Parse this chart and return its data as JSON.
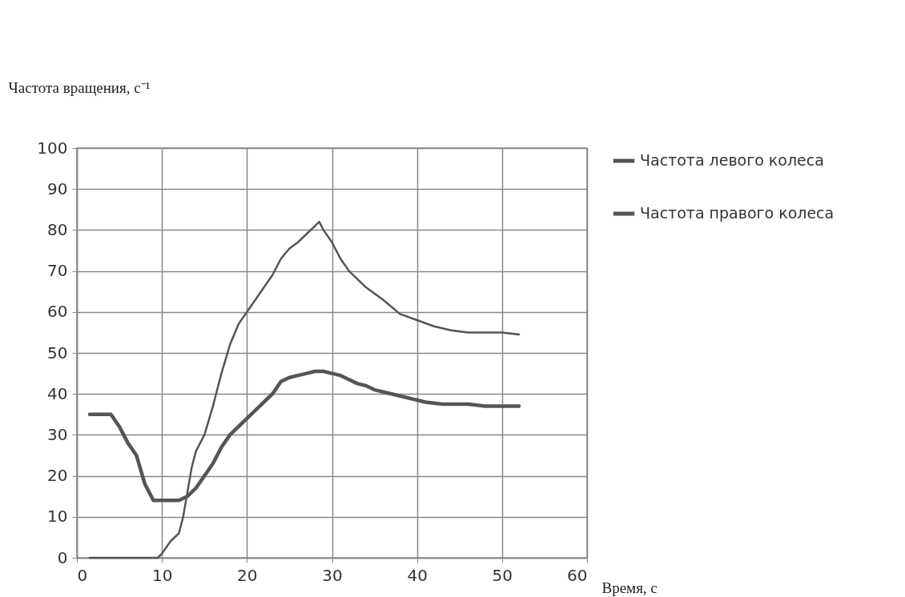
{
  "chart_data": {
    "type": "line",
    "ylabel": "Частота вращения, с⁻¹",
    "xlabel": "Время, с",
    "xlim": [
      0,
      60
    ],
    "xticks": [
      0,
      10,
      20,
      30,
      40,
      50,
      60
    ],
    "ylim": [
      0,
      100
    ],
    "yticks": [
      0,
      10,
      20,
      30,
      40,
      50,
      60,
      70,
      80,
      90,
      100
    ],
    "grid": true,
    "legend": "right",
    "marker": "none",
    "line_style": "solid",
    "series": [
      {
        "name": "Частота левого колеса",
        "color": "#555555",
        "x": [
          1.5,
          4,
          5,
          6,
          7,
          8,
          9,
          12,
          13,
          14,
          15,
          16,
          17,
          18,
          19,
          20,
          21,
          22,
          23,
          24,
          25,
          26,
          27,
          28,
          29,
          30,
          31,
          32,
          33,
          34,
          35,
          37,
          39,
          41,
          43,
          46,
          48,
          52
        ],
        "values": [
          35,
          35,
          32,
          28,
          25,
          18,
          14,
          14,
          15,
          17,
          20,
          23,
          27,
          30,
          32,
          34,
          36,
          38,
          40,
          43,
          44,
          44.5,
          45,
          45.5,
          45.5,
          45,
          44.5,
          43.5,
          42.5,
          42,
          41,
          40,
          39,
          38,
          37.5,
          37.5,
          37,
          37
        ]
      },
      {
        "name": "Частота правого колеса",
        "color": "#555555",
        "x": [
          1.5,
          9.5,
          10,
          11,
          12,
          12.5,
          13,
          13.5,
          14,
          15,
          16,
          17,
          18,
          19,
          20,
          21,
          22,
          23,
          24,
          25,
          26,
          27,
          28,
          28.5,
          29,
          30,
          31,
          32,
          34,
          36,
          38,
          40,
          42,
          44,
          46,
          48,
          50,
          52
        ],
        "values": [
          0,
          0,
          1,
          4,
          6,
          10,
          16,
          22,
          26,
          30,
          37,
          45,
          52,
          57,
          60,
          63,
          66,
          69,
          73,
          75.5,
          77,
          79,
          81,
          82,
          80,
          77,
          73,
          70,
          66,
          63,
          59.5,
          58,
          56.5,
          55.5,
          55,
          55,
          55,
          54.5
        ]
      }
    ]
  }
}
